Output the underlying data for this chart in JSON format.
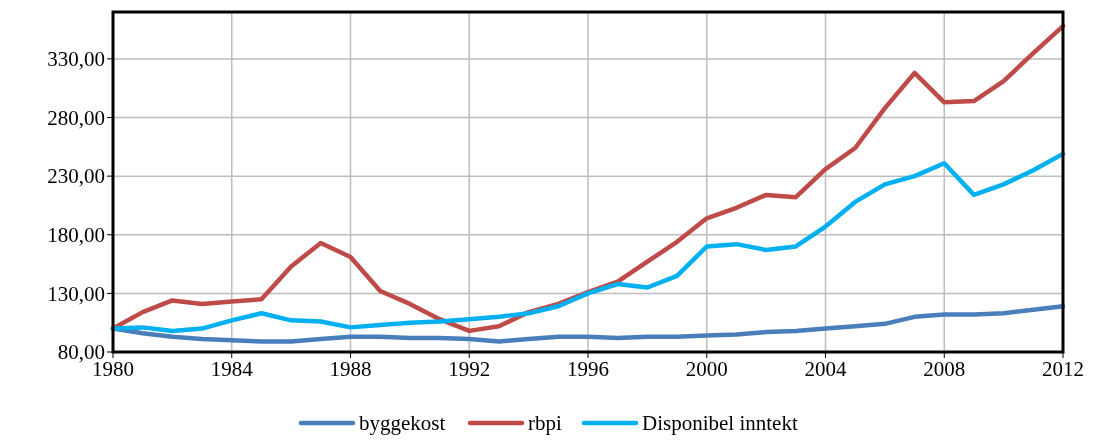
{
  "chart_data": {
    "type": "line",
    "x": [
      1980,
      1981,
      1982,
      1983,
      1984,
      1985,
      1986,
      1987,
      1988,
      1989,
      1990,
      1991,
      1992,
      1993,
      1994,
      1995,
      1996,
      1997,
      1998,
      1999,
      2000,
      2001,
      2002,
      2003,
      2004,
      2005,
      2006,
      2007,
      2008,
      2009,
      2010,
      2011,
      2012
    ],
    "series": [
      {
        "name": "byggekost",
        "color": "#4a7ebb",
        "values": [
          100,
          96,
          93,
          91,
          90,
          89,
          89,
          91,
          93,
          93,
          92,
          92,
          91,
          89,
          91,
          93,
          93,
          92,
          93,
          93,
          94,
          95,
          97,
          98,
          100,
          102,
          104,
          110,
          112,
          112,
          113,
          116,
          119
        ]
      },
      {
        "name": "rbpi",
        "color": "#be4b48",
        "values": [
          100,
          114,
          124,
          121,
          123,
          125,
          153,
          173,
          161,
          132,
          121,
          108,
          98,
          102,
          114,
          121,
          131,
          140,
          157,
          174,
          194,
          203,
          214,
          212,
          236,
          254,
          288,
          318,
          293,
          294,
          311,
          335,
          358
        ]
      },
      {
        "name": "Disponibel inntekt",
        "color": "#00b0f0",
        "values": [
          100,
          101,
          98,
          100,
          107,
          113,
          107,
          106,
          101,
          103,
          105,
          106,
          108,
          110,
          113,
          119,
          130,
          138,
          135,
          145,
          170,
          172,
          167,
          170,
          187,
          208,
          223,
          230,
          241,
          214,
          223,
          235,
          249
        ]
      }
    ],
    "xlim": [
      1980,
      2012
    ],
    "xticks": [
      1980,
      1984,
      1988,
      1992,
      1996,
      2000,
      2004,
      2008,
      2012
    ],
    "ylim": [
      80,
      370
    ],
    "yticks": [
      {
        "value": 80,
        "label": "80,00"
      },
      {
        "value": 130,
        "label": "130,00"
      },
      {
        "value": 180,
        "label": "180,00"
      },
      {
        "value": 230,
        "label": "230,00"
      },
      {
        "value": 280,
        "label": "280,00"
      },
      {
        "value": 330,
        "label": "330,00"
      }
    ],
    "grid": true,
    "legend": "bottom",
    "line_style": "solid"
  }
}
